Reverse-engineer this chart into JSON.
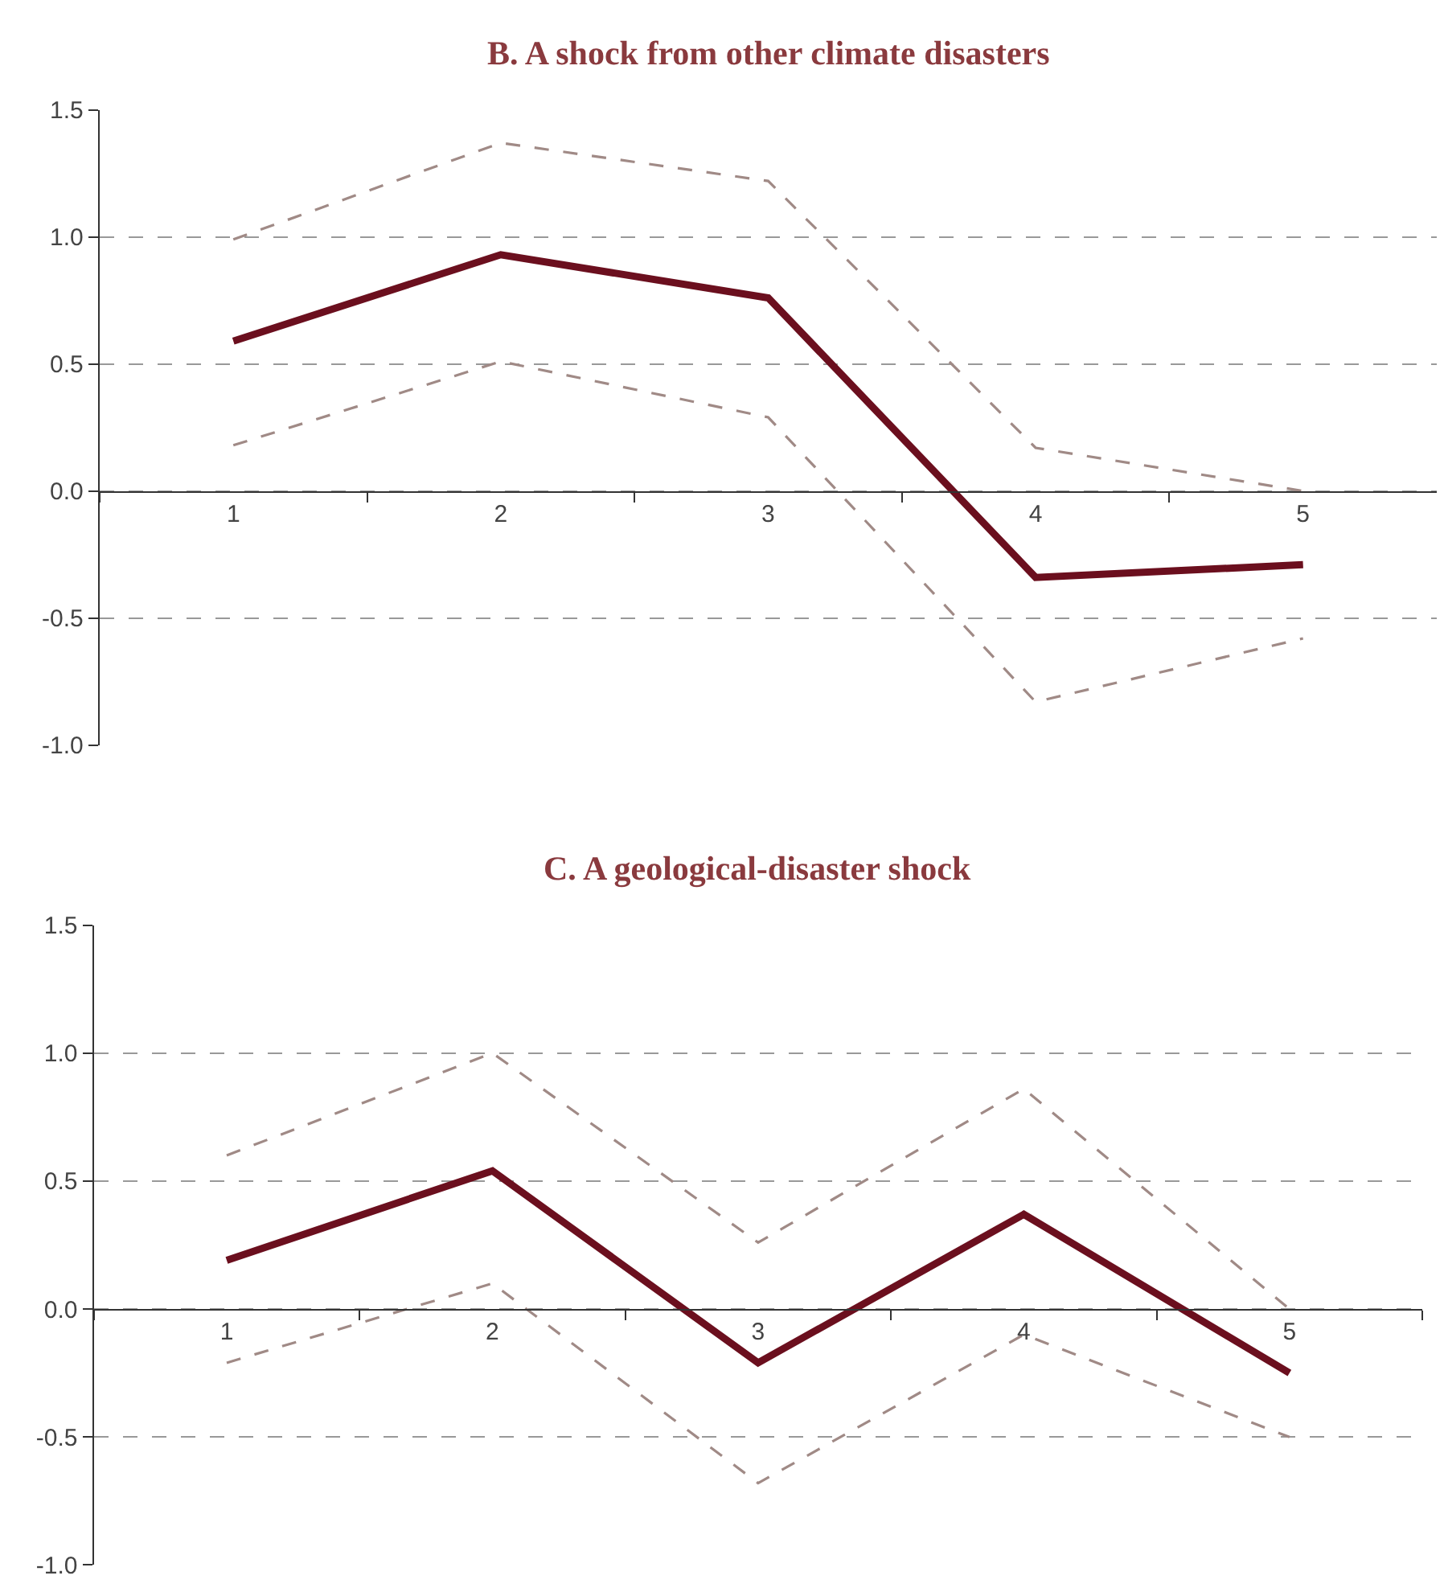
{
  "chart_data": [
    {
      "type": "line",
      "title": "B. A shock from other climate disasters",
      "categories": [
        "1",
        "2",
        "3",
        "4",
        "5"
      ],
      "series": [
        {
          "color": "#a08a86",
          "line_style": "dashed",
          "values": [
            0.99,
            1.37,
            1.22,
            0.17,
            0.0
          ]
        },
        {
          "color": "#a08a86",
          "line_style": "dashed",
          "values": [
            0.18,
            0.51,
            0.29,
            -0.83,
            -0.58
          ]
        },
        {
          "color": "#6b0f1e",
          "line_style": "solid",
          "values": [
            0.59,
            0.93,
            0.76,
            -0.34,
            -0.29
          ]
        }
      ],
      "ylim": [
        -1,
        1.5
      ],
      "yticks": [
        1.5,
        {
          "value": 1,
          "label": "1.0"
        },
        0.5,
        {
          "value": 0,
          "label": "0.0"
        },
        -0.5,
        {
          "value": -1,
          "label": "-1.0"
        }
      ],
      "grid": "y",
      "marker": "none"
    },
    {
      "type": "line",
      "title": "C. A geological-disaster shock",
      "categories": [
        "1",
        "2",
        "3",
        "4",
        "5"
      ],
      "series": [
        {
          "color": "#a08a86",
          "line_style": "dashed",
          "values": [
            0.6,
            1.0,
            0.26,
            0.86,
            0.0
          ]
        },
        {
          "color": "#a08a86",
          "line_style": "dashed",
          "values": [
            -0.21,
            0.1,
            -0.68,
            -0.1,
            -0.5
          ]
        },
        {
          "color": "#6b0f1e",
          "line_style": "solid",
          "values": [
            0.19,
            0.54,
            -0.21,
            0.37,
            -0.25
          ]
        }
      ],
      "ylim": [
        -1,
        1.5
      ],
      "yticks": [
        1.5,
        {
          "value": 1,
          "label": "1.0"
        },
        0.5,
        {
          "value": 0,
          "label": "0.0"
        },
        -0.5,
        {
          "value": -1,
          "label": "-1.0"
        }
      ],
      "grid": "y",
      "marker": "none"
    }
  ]
}
